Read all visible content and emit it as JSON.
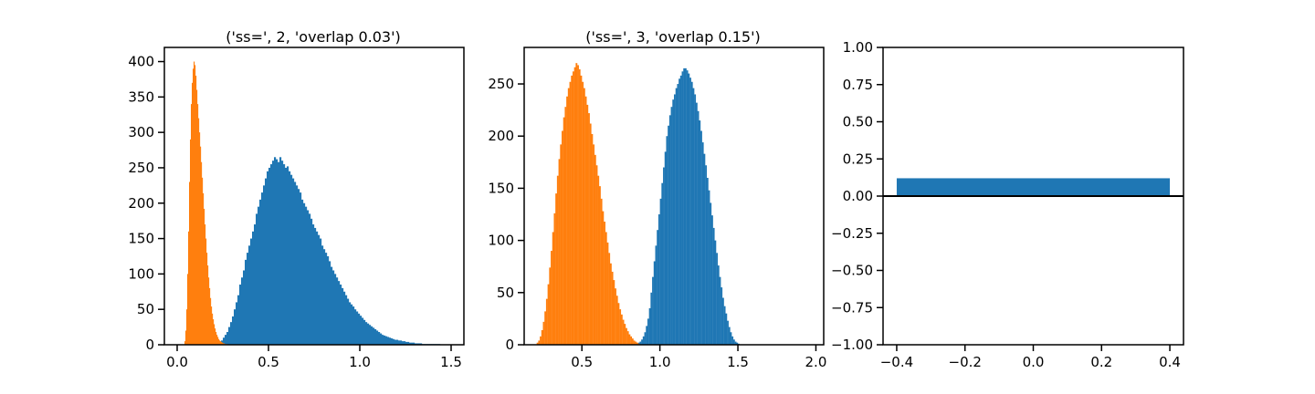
{
  "colors": {
    "blue": "#1f77b4",
    "orange": "#ff7f0e",
    "axis": "#000000"
  },
  "chart_data": [
    {
      "type": "bar",
      "subtype": "histogram",
      "title": "('ss=', 2, 'overlap 0.03')",
      "xlim": [
        -0.07,
        1.57
      ],
      "ylim": [
        0,
        420
      ],
      "xticks": [
        0.0,
        0.5,
        1.0,
        1.5
      ],
      "xtick_labels": [
        "0.0",
        "0.5",
        "1.0",
        "1.5"
      ],
      "yticks": [
        0,
        50,
        100,
        150,
        200,
        250,
        300,
        350,
        400
      ],
      "ytick_labels": [
        "0",
        "50",
        "100",
        "150",
        "200",
        "250",
        "300",
        "350",
        "400"
      ],
      "series": [
        {
          "color": "#1f77b4",
          "bin_start": 0.22,
          "bin_width": 0.01,
          "values": [
            2,
            4,
            6,
            10,
            14,
            18,
            25,
            32,
            40,
            50,
            60,
            70,
            85,
            95,
            105,
            120,
            130,
            140,
            150,
            160,
            170,
            185,
            195,
            205,
            215,
            225,
            235,
            245,
            250,
            255,
            260,
            265,
            262,
            258,
            265,
            260,
            255,
            250,
            252,
            245,
            240,
            235,
            230,
            225,
            220,
            215,
            205,
            200,
            195,
            190,
            185,
            178,
            170,
            165,
            160,
            155,
            150,
            140,
            135,
            130,
            125,
            118,
            110,
            105,
            100,
            95,
            90,
            85,
            80,
            75,
            70,
            65,
            60,
            57,
            54,
            50,
            47,
            44,
            41,
            38,
            35,
            32,
            30,
            28,
            26,
            24,
            22,
            20,
            18,
            16,
            14,
            13,
            12,
            11,
            10,
            9,
            8,
            7,
            7,
            6,
            6,
            5,
            5,
            4,
            4,
            3,
            3,
            3,
            2,
            2,
            2,
            2,
            1,
            1,
            1,
            1,
            1,
            1,
            1,
            1,
            1,
            1
          ]
        },
        {
          "color": "#ff7f0e",
          "bin_start": 0.04,
          "bin_width": 0.005,
          "values": [
            5,
            20,
            50,
            100,
            160,
            230,
            290,
            340,
            370,
            390,
            400,
            395,
            380,
            360,
            340,
            320,
            300,
            280,
            258,
            236,
            214,
            192,
            170,
            150,
            130,
            112,
            95,
            80,
            66,
            54,
            44,
            36,
            29,
            23,
            18,
            14,
            11,
            8,
            6,
            5,
            4,
            3,
            2,
            2,
            1,
            1,
            1
          ]
        }
      ]
    },
    {
      "type": "bar",
      "subtype": "histogram",
      "title": "('ss=', 3, 'overlap 0.15')",
      "xlim": [
        0.13,
        2.05
      ],
      "ylim": [
        0,
        285
      ],
      "xticks": [
        0.5,
        1.0,
        1.5,
        2.0
      ],
      "xtick_labels": [
        "0.5",
        "1.0",
        "1.5",
        "2.0"
      ],
      "yticks": [
        0,
        50,
        100,
        150,
        200,
        250
      ],
      "ytick_labels": [
        "0",
        "50",
        "100",
        "150",
        "200",
        "250"
      ],
      "series": [
        {
          "color": "#1f77b4",
          "bin_start": 0.86,
          "bin_width": 0.01,
          "values": [
            2,
            3,
            5,
            8,
            12,
            18,
            25,
            35,
            50,
            65,
            80,
            95,
            110,
            125,
            140,
            155,
            170,
            185,
            200,
            210,
            220,
            228,
            235,
            240,
            246,
            250,
            255,
            258,
            262,
            265,
            265,
            263,
            260,
            256,
            252,
            246,
            240,
            232,
            224,
            215,
            205,
            194,
            183,
            172,
            160,
            148,
            136,
            124,
            112,
            100,
            88,
            76,
            65,
            55,
            45,
            37,
            30,
            23,
            17,
            12,
            8,
            5,
            3,
            2,
            1
          ]
        },
        {
          "color": "#ff7f0e",
          "bin_start": 0.21,
          "bin_width": 0.01,
          "values": [
            2,
            4,
            8,
            14,
            22,
            32,
            44,
            58,
            74,
            90,
            108,
            126,
            145,
            162,
            178,
            192,
            205,
            218,
            228,
            238,
            246,
            252,
            258,
            262,
            266,
            270,
            268,
            264,
            258,
            252,
            246,
            238,
            230,
            222,
            212,
            202,
            192,
            182,
            172,
            162,
            152,
            140,
            128,
            118,
            108,
            98,
            88,
            78,
            70,
            62,
            54,
            47,
            40,
            34,
            29,
            24,
            20,
            16,
            13,
            10,
            8,
            6,
            4,
            3,
            2,
            1
          ]
        }
      ]
    },
    {
      "type": "bar",
      "xlim": [
        -0.44,
        0.44
      ],
      "ylim": [
        -1.0,
        1.0
      ],
      "xticks": [
        -0.4,
        -0.2,
        0.0,
        0.2,
        0.4
      ],
      "xtick_labels": [
        "−0.4",
        "−0.2",
        "0.0",
        "0.2",
        "0.4"
      ],
      "yticks": [
        -1.0,
        -0.75,
        -0.5,
        -0.25,
        0.0,
        0.25,
        0.5,
        0.75,
        1.0
      ],
      "ytick_labels": [
        "−1.00",
        "−0.75",
        "−0.50",
        "−0.25",
        "0.00",
        "0.25",
        "0.50",
        "0.75",
        "1.00"
      ],
      "bars": [
        {
          "x": 0.0,
          "width": 0.8,
          "value": 0.12,
          "color": "#1f77b4"
        }
      ],
      "hline": 0.0
    }
  ]
}
